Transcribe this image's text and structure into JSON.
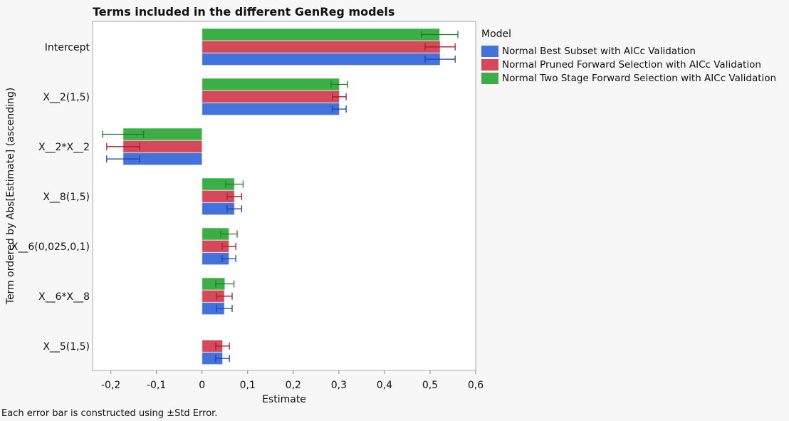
{
  "chart_data": {
    "type": "bar",
    "orientation": "horizontal",
    "title": "Terms included in the different GenReg models",
    "xlabel": "Estimate",
    "ylabel": "Term ordered by Abs[Estimate] (ascending)",
    "xlim": [
      -0.24,
      0.6
    ],
    "xticks": [
      "-0,2",
      "-0,1",
      "0",
      "0,1",
      "0,2",
      "0,3",
      "0,4",
      "0,5",
      "0,6"
    ],
    "xtick_values": [
      -0.2,
      -0.1,
      0,
      0.1,
      0.2,
      0.3,
      0.4,
      0.5,
      0.6
    ],
    "grid": false,
    "legend_title": "Model",
    "legend_position": "right",
    "categories": [
      "Intercept",
      "X__2(1,5)",
      "X__2*X__2",
      "X__8(1,5)",
      "X__6(0,025,0,1)",
      "X__6*X__8",
      "X__5(1,5)"
    ],
    "series": [
      {
        "name": "Normal Best Subset with AICc Validation",
        "color": "#4472dc",
        "values": [
          0.522,
          0.301,
          -0.173,
          0.071,
          0.059,
          0.049,
          0.045
        ],
        "std_error": [
          0.033,
          0.015,
          0.036,
          0.016,
          0.015,
          0.017,
          0.015
        ]
      },
      {
        "name": "Normal Pruned Forward Selection with AICc Validation",
        "color": "#d44a5a",
        "values": [
          0.522,
          0.301,
          -0.173,
          0.071,
          0.059,
          0.049,
          0.045
        ],
        "std_error": [
          0.033,
          0.015,
          0.036,
          0.016,
          0.015,
          0.017,
          0.015
        ]
      },
      {
        "name": "Normal Two Stage Forward Selection with AICc Validation",
        "color": "#3cae46",
        "values": [
          0.521,
          0.301,
          -0.173,
          0.071,
          0.059,
          0.05,
          null
        ],
        "std_error": [
          0.04,
          0.018,
          0.045,
          0.019,
          0.018,
          0.02,
          null
        ]
      }
    ],
    "errorbar_colors": [
      "#1f3fa8",
      "#a81c2e",
      "#237a2d"
    ]
  },
  "footnote": "Each error bar is constructed using ±Std Error."
}
